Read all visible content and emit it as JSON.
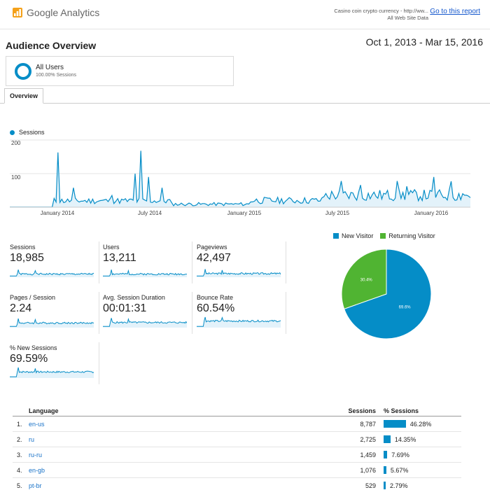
{
  "header": {
    "product_name": "Google Analytics",
    "account_line1": "Casino coin crypto currency - http://ww...",
    "account_line2": "All Web Site Data",
    "goto_link": "Go to this report"
  },
  "page_title": "Audience Overview",
  "date_range": "Oct 1, 2013 - Mar 15, 2016",
  "segment": {
    "name": "All Users",
    "pct": "100.00% Sessions"
  },
  "tabs": [
    {
      "label": "Overview"
    }
  ],
  "colors": {
    "accent": "#058dc7",
    "returning": "#50b432",
    "fill": "#e3f2fa",
    "link": "#1155cc"
  },
  "chart_data": [
    {
      "type": "area",
      "series": [
        {
          "name": "Sessions"
        }
      ],
      "ylim": [
        0,
        200
      ],
      "yticks": [
        "100",
        "200"
      ],
      "x_ticks": [
        "January 2014",
        "July 2014",
        "January 2015",
        "July 2015",
        "January 2016"
      ],
      "x_range": [
        "2013-10-01",
        "2016-03-15"
      ],
      "grid": true
    },
    {
      "type": "pie",
      "legend_position": "top",
      "slices": [
        {
          "name": "New Visitor",
          "value": 69.6,
          "label": "69.6%",
          "color": "#058dc7"
        },
        {
          "name": "Returning Visitor",
          "value": 30.4,
          "label": "30.4%",
          "color": "#50b432"
        }
      ]
    }
  ],
  "metrics": [
    {
      "label": "Sessions",
      "value": "18,985"
    },
    {
      "label": "Users",
      "value": "13,211"
    },
    {
      "label": "Pageviews",
      "value": "42,497"
    },
    {
      "label": "Pages / Session",
      "value": "2.24"
    },
    {
      "label": "Avg. Session Duration",
      "value": "00:01:31"
    },
    {
      "label": "Bounce Rate",
      "value": "60.54%"
    },
    {
      "label": "% New Sessions",
      "value": "69.59%"
    }
  ],
  "table": {
    "headers": {
      "language": "Language",
      "sessions": "Sessions",
      "pct": "% Sessions"
    },
    "rows": [
      {
        "rank": "1.",
        "language": "en-us",
        "sessions": "8,787",
        "pct": "46.28%",
        "pct_value": 46.28
      },
      {
        "rank": "2.",
        "language": "ru",
        "sessions": "2,725",
        "pct": "14.35%",
        "pct_value": 14.35
      },
      {
        "rank": "3.",
        "language": "ru-ru",
        "sessions": "1,459",
        "pct": "7.69%",
        "pct_value": 7.69
      },
      {
        "rank": "4.",
        "language": "en-gb",
        "sessions": "1,076",
        "pct": "5.67%",
        "pct_value": 5.67
      },
      {
        "rank": "5.",
        "language": "pt-br",
        "sessions": "529",
        "pct": "2.79%",
        "pct_value": 2.79
      }
    ]
  }
}
